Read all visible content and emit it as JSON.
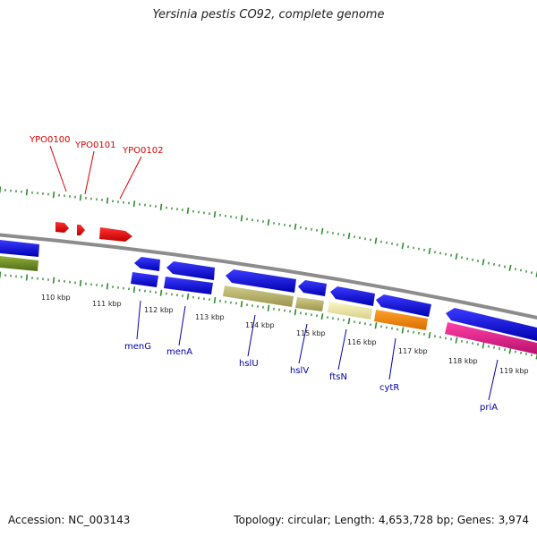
{
  "title": "Yersinia pestis CO92, complete genome",
  "footer": {
    "accession": "Accession: NC_003143",
    "summary": "Topology: circular; Length: 4,653,728 bp; Genes: 3,974"
  },
  "colors": {
    "backbone": "#8c8c8c",
    "tick": "#2e8b2e",
    "forward_label": "#dd0000",
    "reverse_label": "#0000aa",
    "scale_label": "#222222"
  },
  "scale_labels": [
    {
      "label": "110 kbp",
      "kbp": 110
    },
    {
      "label": "111 kbp",
      "kbp": 111
    },
    {
      "label": "112 kbp",
      "kbp": 112
    },
    {
      "label": "113 kbp",
      "kbp": 113
    },
    {
      "label": "114 kbp",
      "kbp": 114
    },
    {
      "label": "115 kbp",
      "kbp": 115
    },
    {
      "label": "116 kbp",
      "kbp": 116
    },
    {
      "label": "117 kbp",
      "kbp": 117
    },
    {
      "label": "118 kbp",
      "kbp": 118
    },
    {
      "label": "119 kbp",
      "kbp": 119
    }
  ],
  "forward_genes": [
    {
      "name": "YPO0100",
      "color": "#ee0000"
    },
    {
      "name": "YPO0101",
      "color": "#ee0000"
    },
    {
      "name": "YPO0102",
      "color": "#ee0000"
    }
  ],
  "reverse_genes": [
    {
      "name": "menG",
      "color": "#0000dd"
    },
    {
      "name": "menA",
      "color": "#0000dd"
    },
    {
      "name": "hslU",
      "color": "#0000dd"
    },
    {
      "name": "hslV",
      "color": "#0000dd"
    },
    {
      "name": "ftsN",
      "color": "#0000dd"
    },
    {
      "name": "cytR",
      "color": "#0000dd"
    },
    {
      "name": "priA",
      "color": "#0000dd"
    }
  ],
  "feature_colors": {
    "cds": "#0000ee",
    "olive": "#6b8e23",
    "khaki": "#bdb76b",
    "pale_yellow": "#eee8aa",
    "orange": "#ff8c00",
    "magenta": "#e8198b"
  }
}
